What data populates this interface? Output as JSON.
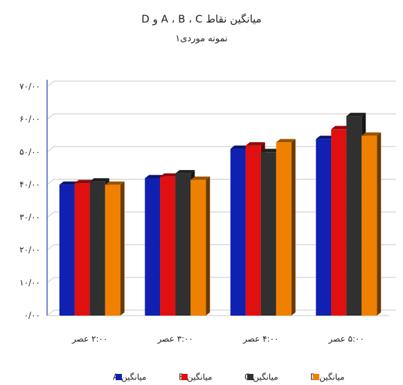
{
  "chart_data": {
    "type": "bar3d",
    "title": "میانگین نقاط A ، B ، C و D",
    "subtitle": "نمونه موردی۱",
    "categories": [
      "۲:۰۰ عصر",
      "۳:۰۰ عصر",
      "۴:۰۰ عصر",
      "۵:۰۰ عصر"
    ],
    "series": [
      {
        "name": "میانگین A",
        "color": "#1020b0",
        "values": [
          40,
          42,
          51,
          54
        ]
      },
      {
        "name": "میانگین B",
        "color": "#e01010",
        "values": [
          40.5,
          42.5,
          52,
          57
        ]
      },
      {
        "name": "میانگین C",
        "color": "#303030",
        "values": [
          41,
          43.5,
          50,
          61
        ]
      },
      {
        "name": "میانگین D",
        "color": "#f08000",
        "values": [
          40,
          41.5,
          53,
          55
        ]
      }
    ],
    "ylim": [
      0,
      70
    ],
    "yticks": [
      {
        "value": 0,
        "label": "۰/۰۰"
      },
      {
        "value": 10,
        "label": "۱۰/۰۰"
      },
      {
        "value": 20,
        "label": "۲۰/۰۰"
      },
      {
        "value": 30,
        "label": "۳۰/۰۰"
      },
      {
        "value": 40,
        "label": "۴۰/۰۰"
      },
      {
        "value": 50,
        "label": "۵۰/۰۰"
      },
      {
        "value": 60,
        "label": "۶۰/۰۰"
      },
      {
        "value": 70,
        "label": "۷۰/۰۰"
      }
    ],
    "grid": true
  }
}
